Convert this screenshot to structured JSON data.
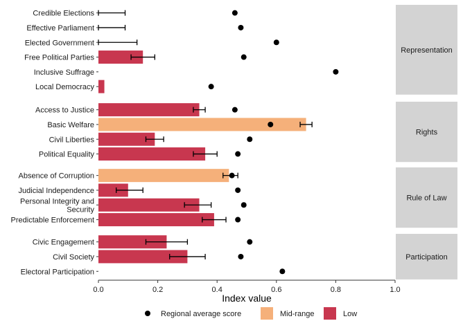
{
  "chart_data": {
    "type": "bar",
    "xlabel": "Index value",
    "ylabel": "",
    "xlim": [
      0,
      1.0
    ],
    "x_ticks": [
      "0.0",
      "0.2",
      "0.4",
      "0.6",
      "0.8",
      "1.0"
    ],
    "grid": false,
    "legend_placement": "bottom",
    "legend": [
      {
        "key": "avg",
        "label": "Regional average score",
        "symbol": "dot",
        "color": "#000000"
      },
      {
        "key": "mid",
        "label": "Mid-range",
        "symbol": "box",
        "color": "#F5B07A"
      },
      {
        "key": "low",
        "label": "Low",
        "symbol": "box",
        "color": "#C8374F"
      }
    ],
    "colors": {
      "Mid-range": "#F5B07A",
      "Low": "#C8374F",
      "panel_strip": "#D3D3D3"
    },
    "panels": [
      {
        "name": "Representation",
        "rows": [
          {
            "label": "Credible Elections",
            "value": 0.0,
            "err_low": 0.0,
            "err_high": 0.09,
            "category": "Low",
            "avg": 0.46
          },
          {
            "label": "Effective Parliament",
            "value": 0.0,
            "err_low": 0.0,
            "err_high": 0.09,
            "category": "Low",
            "avg": 0.48
          },
          {
            "label": "Elected Government",
            "value": 0.0,
            "err_low": 0.0,
            "err_high": 0.13,
            "category": "Low",
            "avg": 0.6
          },
          {
            "label": "Free Political Parties",
            "value": 0.15,
            "err_low": 0.11,
            "err_high": 0.19,
            "category": "Low",
            "avg": 0.49
          },
          {
            "label": "Inclusive Suffrage",
            "value": 0.0,
            "err_low": null,
            "err_high": null,
            "category": "Low",
            "avg": 0.8
          },
          {
            "label": "Local Democracy",
            "value": 0.02,
            "err_low": null,
            "err_high": null,
            "category": "Low",
            "avg": 0.38
          }
        ]
      },
      {
        "name": "Rights",
        "rows": [
          {
            "label": "Access to Justice",
            "value": 0.34,
            "err_low": 0.32,
            "err_high": 0.36,
            "category": "Low",
            "avg": 0.46
          },
          {
            "label": "Basic Welfare",
            "value": 0.7,
            "err_low": 0.68,
            "err_high": 0.72,
            "category": "Mid-range",
            "avg": 0.58
          },
          {
            "label": "Civil Liberties",
            "value": 0.19,
            "err_low": 0.16,
            "err_high": 0.22,
            "category": "Low",
            "avg": 0.51
          },
          {
            "label": "Political Equality",
            "value": 0.36,
            "err_low": 0.32,
            "err_high": 0.4,
            "category": "Low",
            "avg": 0.47
          }
        ]
      },
      {
        "name": "Rule of Law",
        "rows": [
          {
            "label": "Absence of Corruption",
            "value": 0.44,
            "err_low": 0.42,
            "err_high": 0.47,
            "category": "Mid-range",
            "avg": 0.45
          },
          {
            "label": "Judicial Independence",
            "value": 0.1,
            "err_low": 0.06,
            "err_high": 0.15,
            "category": "Low",
            "avg": 0.47
          },
          {
            "label": "Personal Integrity and Security",
            "value": 0.34,
            "err_low": 0.29,
            "err_high": 0.38,
            "category": "Low",
            "avg": 0.49
          },
          {
            "label": "Predictable Enforcement",
            "value": 0.39,
            "err_low": 0.35,
            "err_high": 0.43,
            "category": "Low",
            "avg": 0.47
          }
        ]
      },
      {
        "name": "Participation",
        "rows": [
          {
            "label": "Civic Engagement",
            "value": 0.23,
            "err_low": 0.16,
            "err_high": 0.3,
            "category": "Low",
            "avg": 0.51
          },
          {
            "label": "Civil Society",
            "value": 0.3,
            "err_low": 0.24,
            "err_high": 0.36,
            "category": "Low",
            "avg": 0.48
          },
          {
            "label": "Electoral Participation",
            "value": 0.0,
            "err_low": null,
            "err_high": null,
            "category": "Low",
            "avg": 0.62
          }
        ]
      }
    ]
  }
}
